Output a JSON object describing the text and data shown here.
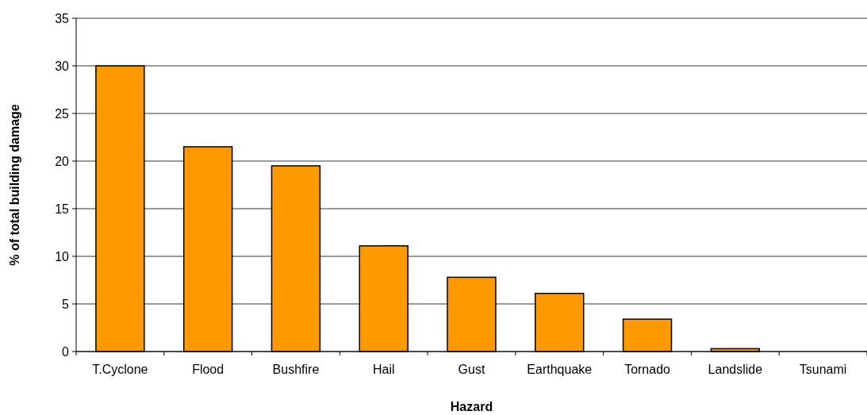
{
  "chart_data": {
    "type": "bar",
    "xlabel": "Hazard",
    "ylabel": "% of total building damage",
    "categories": [
      "T.Cyclone",
      "Flood",
      "Bushfire",
      "Hail",
      "Gust",
      "Earthquake",
      "Tornado",
      "Landslide",
      "Tsunami"
    ],
    "values": [
      30,
      21.5,
      19.5,
      11.1,
      7.8,
      6.1,
      3.4,
      0.3,
      0
    ],
    "color": "#ff9900",
    "ylim": [
      0,
      35
    ],
    "yticks": [
      0,
      5,
      10,
      15,
      20,
      25,
      30,
      35
    ],
    "grid": "y"
  }
}
